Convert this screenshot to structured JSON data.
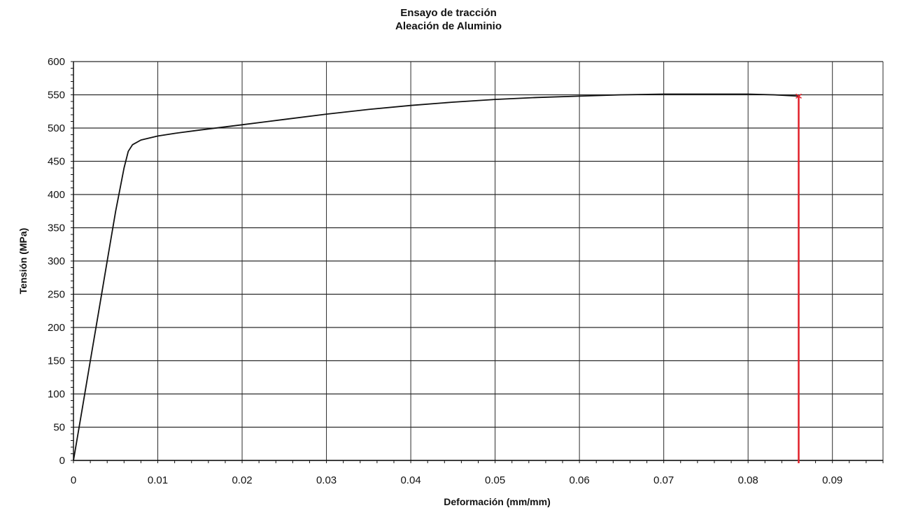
{
  "chart_data": {
    "type": "line",
    "title": "Ensayo de tracción",
    "subtitle": "Aleación de Aluminio",
    "xlabel": "Deformación (mm/mm)",
    "ylabel": "Tensión (MPa)",
    "xlim": [
      0,
      0.096
    ],
    "ylim": [
      0,
      600
    ],
    "xticks": [
      0,
      0.01,
      0.02,
      0.03,
      0.04,
      0.05,
      0.06,
      0.07,
      0.08,
      0.09
    ],
    "xtick_labels": [
      "0",
      "0.01",
      "0.02",
      "0.03",
      "0.04",
      "0.05",
      "0.06",
      "0.07",
      "0.08",
      "0.09"
    ],
    "yticks": [
      0,
      50,
      100,
      150,
      200,
      250,
      300,
      350,
      400,
      450,
      500,
      550,
      600
    ],
    "ytick_labels": [
      "0",
      "50",
      "100",
      "150",
      "200",
      "250",
      "300",
      "350",
      "400",
      "450",
      "500",
      "550",
      "600"
    ],
    "grid": true,
    "series": [
      {
        "x": [
          0,
          0.001,
          0.002,
          0.003,
          0.004,
          0.005,
          0.006,
          0.0065,
          0.007,
          0.008,
          0.01,
          0.012,
          0.015,
          0.02,
          0.025,
          0.03,
          0.035,
          0.04,
          0.045,
          0.05,
          0.055,
          0.06,
          0.065,
          0.07,
          0.075,
          0.08,
          0.083,
          0.086
        ],
        "y": [
          0,
          75,
          150,
          225,
          300,
          375,
          440,
          465,
          475,
          482,
          488,
          492,
          497,
          505,
          513,
          521,
          528,
          534,
          539,
          543,
          546,
          548,
          550,
          551,
          551,
          551,
          550,
          548
        ],
        "color": "#111111"
      }
    ],
    "fracture_marker": {
      "x": 0.086,
      "y": 548,
      "color": "#e0202a"
    }
  }
}
